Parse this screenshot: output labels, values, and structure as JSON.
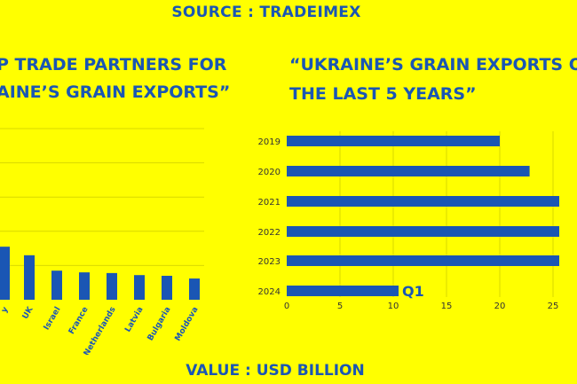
{
  "header": {
    "source": "SOURCE : TRADEIMEX"
  },
  "footer": {
    "value_label": "VALUE : USD BILLION"
  },
  "colors": {
    "background": "#ffff00",
    "accent": "#1a56b4"
  },
  "chart_data": [
    {
      "type": "bar",
      "orientation": "vertical",
      "title_lines": [
        "P TRADE PARTNERS FOR",
        "AINE’S GRAIN EXPORTS”"
      ],
      "categories": [
        "y",
        "UK",
        "Israel",
        "France",
        "Netherlands",
        "Latvia",
        "Bulgaria",
        "Moldova"
      ],
      "values": [
        1.55,
        1.3,
        0.85,
        0.8,
        0.78,
        0.72,
        0.7,
        0.62
      ],
      "ylim": [
        0,
        5
      ],
      "grid": true,
      "label_rotation": -60
    },
    {
      "type": "bar",
      "orientation": "horizontal",
      "title_lines": [
        "“UKRAINE’S GRAIN EXPORTS O",
        "THE LAST 5 YEARS”"
      ],
      "categories": [
        "2019",
        "2020",
        "2021",
        "2022",
        "2023",
        "2024"
      ],
      "values": [
        20,
        22.8,
        28,
        28,
        28,
        10.5
      ],
      "annotations": [
        {
          "category": "2024",
          "text": "Q1"
        }
      ],
      "xticks": [
        0,
        5,
        10,
        15,
        20,
        25
      ],
      "xlim": [
        0,
        27.5
      ],
      "grid": true
    }
  ]
}
